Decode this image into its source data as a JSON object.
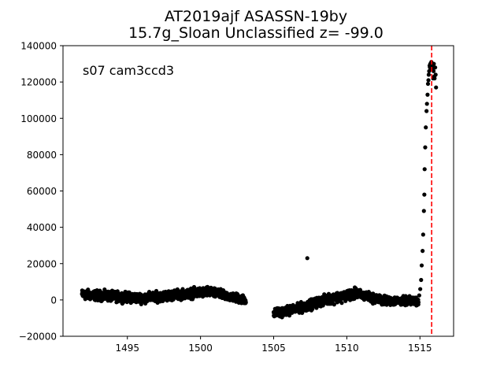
{
  "chart_data": {
    "type": "scatter",
    "title_line1": "AT2019ajf  ASASSN-19by",
    "title_line2": "15.7g_Sloan Unclassified z= -99.0",
    "annotation": "s07 cam3ccd3",
    "xlim": [
      1490.6,
      1517.3
    ],
    "ylim": [
      -20000,
      140000
    ],
    "xticks": [
      1495,
      1500,
      1505,
      1510,
      1515
    ],
    "yticks": [
      -20000,
      0,
      20000,
      40000,
      60000,
      80000,
      100000,
      120000,
      140000
    ],
    "xtick_labels": [
      "1495",
      "1500",
      "1505",
      "1510",
      "1515"
    ],
    "ytick_labels": [
      "−20000",
      "0",
      "20000",
      "40000",
      "60000",
      "80000",
      "100000",
      "120000",
      "140000"
    ],
    "marker_color": "#000000",
    "vline": {
      "x": 1515.8,
      "color": "#ff0000",
      "style": "dashed"
    },
    "segments": [
      {
        "x_start": 1491.9,
        "x_end": 1496.0,
        "y_start": 3000,
        "y_end": 1000,
        "scatter": 2600
      },
      {
        "x_start": 1496.0,
        "x_end": 1500.5,
        "y_start": 1000,
        "y_end": 4500,
        "scatter": 2600
      },
      {
        "x_start": 1500.5,
        "x_end": 1503.1,
        "y_start": 4500,
        "y_end": 0,
        "scatter": 2400
      },
      {
        "x_start": 1505.0,
        "x_end": 1506.8,
        "y_start": -7500,
        "y_end": -4500,
        "scatter": 2400
      },
      {
        "x_start": 1506.8,
        "x_end": 1508.5,
        "y_start": -4500,
        "y_end": 0,
        "scatter": 2600
      },
      {
        "x_start": 1508.5,
        "x_end": 1510.6,
        "y_start": 0,
        "y_end": 3500,
        "scatter": 2800
      },
      {
        "x_start": 1510.6,
        "x_end": 1512.6,
        "y_start": 3500,
        "y_end": -500,
        "scatter": 2500
      },
      {
        "x_start": 1512.6,
        "x_end": 1514.9,
        "y_start": -500,
        "y_end": -500,
        "scatter": 2200
      }
    ],
    "points": [
      [
        1507.3,
        23000
      ],
      [
        1514.95,
        2500
      ],
      [
        1515.02,
        6000
      ],
      [
        1515.08,
        11000
      ],
      [
        1515.12,
        19000
      ],
      [
        1515.18,
        27000
      ],
      [
        1515.22,
        36000
      ],
      [
        1515.27,
        49000
      ],
      [
        1515.3,
        58000
      ],
      [
        1515.32,
        72000
      ],
      [
        1515.36,
        84000
      ],
      [
        1515.4,
        95000
      ],
      [
        1515.45,
        104000
      ],
      [
        1515.48,
        108000
      ],
      [
        1515.52,
        113000
      ],
      [
        1515.55,
        119000
      ],
      [
        1515.58,
        121000
      ],
      [
        1515.6,
        124000
      ],
      [
        1515.63,
        126000
      ],
      [
        1515.66,
        129000
      ],
      [
        1515.68,
        128000
      ],
      [
        1515.71,
        130000
      ],
      [
        1515.74,
        129000
      ],
      [
        1515.76,
        127000
      ],
      [
        1515.78,
        131000
      ],
      [
        1515.8,
        130000
      ],
      [
        1515.82,
        128000
      ],
      [
        1515.85,
        129000
      ],
      [
        1515.88,
        127000
      ],
      [
        1515.9,
        122000
      ],
      [
        1515.93,
        126000
      ],
      [
        1515.95,
        130000
      ],
      [
        1515.97,
        123000
      ],
      [
        1516.0,
        122000
      ],
      [
        1516.04,
        128000
      ],
      [
        1516.07,
        124000
      ],
      [
        1516.1,
        117000
      ]
    ]
  }
}
